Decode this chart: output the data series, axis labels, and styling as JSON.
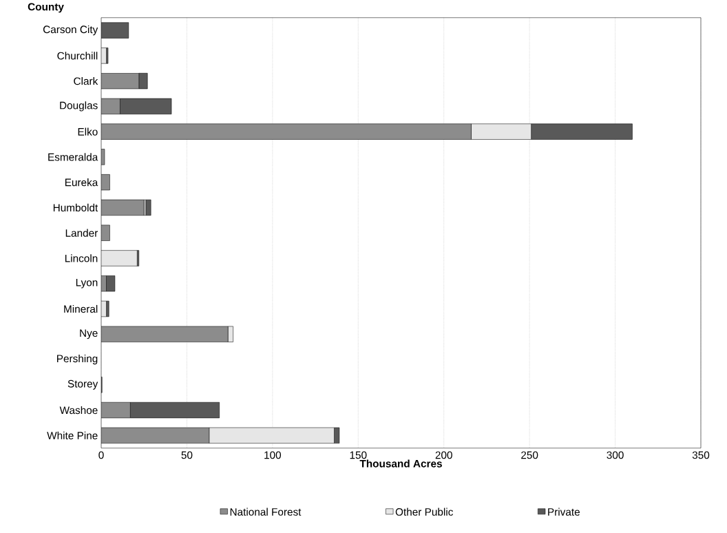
{
  "chart_data": {
    "type": "bar",
    "orientation": "horizontal",
    "stacked": true,
    "xlabel": "Thousand Acres",
    "ylabel": "County",
    "categories": [
      "Carson City",
      "Churchill",
      "Clark",
      "Douglas",
      "Elko",
      "Esmeralda",
      "Eureka",
      "Humboldt",
      "Lander",
      "Lincoln",
      "Lyon",
      "Mineral",
      "Nye",
      "Pershing",
      "Storey",
      "Washoe",
      "White Pine"
    ],
    "series": [
      {
        "name": "National Forest",
        "color": "#8c8c8c",
        "values": [
          0,
          0,
          22,
          11,
          216,
          2,
          5,
          25,
          5,
          0,
          3,
          0,
          74,
          0,
          0,
          17,
          63
        ]
      },
      {
        "name": "Other Public",
        "color": "#e6e6e6",
        "values": [
          0,
          3,
          0,
          0,
          35,
          0,
          0,
          1,
          0,
          21,
          0,
          3,
          3,
          0,
          0,
          0,
          73
        ]
      },
      {
        "name": "Private",
        "color": "#595959",
        "values": [
          16,
          1,
          5,
          30,
          59,
          0,
          0,
          3,
          0,
          1,
          5,
          1.5,
          0,
          0,
          0.5,
          52,
          3
        ]
      }
    ],
    "xlim": [
      0,
      350
    ],
    "xticks": [
      0,
      50,
      100,
      150,
      200,
      250,
      300,
      350
    ],
    "grid": "x",
    "legend": "bottom"
  }
}
